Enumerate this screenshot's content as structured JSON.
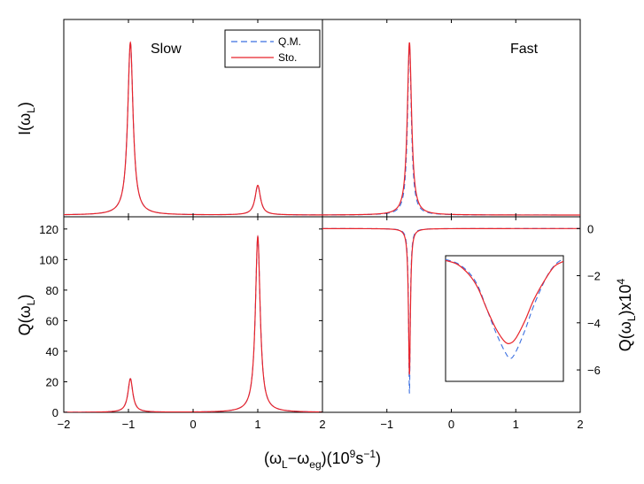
{
  "chart_data": [
    {
      "panel": "top-left",
      "type": "line",
      "title": "Slow",
      "ylabel": "I(ω_L)",
      "xlim": [
        -2,
        2
      ],
      "ylim": [
        0,
        100
      ],
      "ytick_labels": false,
      "legend": {
        "position": "top-right",
        "entries": [
          "Q.M.",
          "Sto."
        ]
      },
      "series": [
        {
          "name": "Q.M.",
          "color": "#3b6fe0",
          "style": "dashed",
          "peaks": [
            {
              "x0": -0.97,
              "gamma": 0.05,
              "amp": 100
            },
            {
              "x0": 1.0,
              "gamma": 0.05,
              "amp": 18
            }
          ],
          "baseline": 1.0
        },
        {
          "name": "Sto.",
          "color": "#e8232a",
          "style": "solid",
          "peaks": [
            {
              "x0": -0.97,
              "gamma": 0.05,
              "amp": 100
            },
            {
              "x0": 1.0,
              "gamma": 0.05,
              "amp": 18
            }
          ],
          "baseline": 1.0
        }
      ]
    },
    {
      "panel": "top-right",
      "type": "line",
      "title": "Fast",
      "xlim": [
        -2,
        2
      ],
      "ylim": [
        0,
        100
      ],
      "ytick_labels": false,
      "series": [
        {
          "name": "Q.M.",
          "color": "#3b6fe0",
          "style": "dashed",
          "peaks": [
            {
              "x0": -0.65,
              "gamma": 0.035,
              "amp": 99
            }
          ],
          "baseline": 1.0
        },
        {
          "name": "Sto.",
          "color": "#e8232a",
          "style": "solid",
          "peaks": [
            {
              "x0": -0.65,
              "gamma": 0.04,
              "amp": 100
            }
          ],
          "baseline": 1.0
        }
      ]
    },
    {
      "panel": "bottom-left",
      "type": "line",
      "ylabel": "Q(ω_L)",
      "xlabel": "(ω_L−ω_eg)(10^9s^−1)",
      "xlim": [
        -2,
        2
      ],
      "ylim": [
        0,
        128
      ],
      "xticks": [
        -2,
        -1,
        0,
        1,
        2
      ],
      "yticks": [
        0,
        20,
        40,
        60,
        80,
        100,
        120
      ],
      "series": [
        {
          "name": "Q.M.",
          "color": "#3b6fe0",
          "style": "dashed",
          "peaks": [
            {
              "x0": -0.97,
              "gamma": 0.045,
              "amp": 22
            },
            {
              "x0": 1.0,
              "gamma": 0.045,
              "amp": 115
            }
          ],
          "baseline": 0
        },
        {
          "name": "Sto.",
          "color": "#e8232a",
          "style": "solid",
          "peaks": [
            {
              "x0": -0.97,
              "gamma": 0.045,
              "amp": 22
            },
            {
              "x0": 1.0,
              "gamma": 0.045,
              "amp": 115
            }
          ],
          "baseline": 0
        }
      ]
    },
    {
      "panel": "bottom-right",
      "type": "line",
      "ylabel": "Q(ω_L)x10^4",
      "xlim": [
        -2,
        2
      ],
      "ylim": [
        -7.8,
        0.5
      ],
      "xticks": [
        -1,
        0,
        1,
        2
      ],
      "yticks": [
        0,
        -2,
        -4,
        -6
      ],
      "series": [
        {
          "name": "Q.M.",
          "color": "#3b6fe0",
          "style": "dashed",
          "peaks": [
            {
              "x0": -0.65,
              "gamma": 0.015,
              "amp": -7.0
            }
          ],
          "baseline": 0
        },
        {
          "name": "Sto.",
          "color": "#e8232a",
          "style": "solid",
          "peaks": [
            {
              "x0": -0.65,
              "gamma": 0.018,
              "amp": -6.2
            }
          ],
          "baseline": 0
        }
      ],
      "inset": {
        "xlim": [
          -1,
          1
        ],
        "ylim": [
          -6.6,
          0
        ],
        "series": [
          {
            "name": "Q.M.",
            "color": "#3b6fe0",
            "style": "dashed",
            "x": [
              -1.0,
              -0.8,
              -0.6,
              -0.45,
              -0.3,
              -0.15,
              0.0,
              0.1,
              0.2,
              0.35,
              0.5,
              0.7,
              0.85,
              1.0
            ],
            "y": [
              -0.2,
              -0.4,
              -0.9,
              -1.6,
              -2.8,
              -4.0,
              -5.0,
              -5.4,
              -5.0,
              -3.9,
              -2.6,
              -1.2,
              -0.5,
              -0.15
            ]
          },
          {
            "name": "Sto.",
            "color": "#e8232a",
            "style": "solid",
            "x": [
              -1.0,
              -0.8,
              -0.6,
              -0.45,
              -0.3,
              -0.15,
              0.0,
              0.1,
              0.2,
              0.35,
              0.5,
              0.7,
              0.85,
              1.0
            ],
            "y": [
              -0.25,
              -0.45,
              -1.0,
              -1.7,
              -2.8,
              -3.8,
              -4.5,
              -4.6,
              -4.3,
              -3.4,
              -2.3,
              -1.2,
              -0.55,
              -0.3
            ]
          }
        ]
      }
    }
  ],
  "labels": {
    "slow": "Slow",
    "fast": "Fast",
    "legend_qm": "Q.M.",
    "legend_sto": "Sto.",
    "ylabel_top_left": "I(ω",
    "ylabel_top_left_sub": "L",
    "ylabel_top_left_end": ")",
    "ylabel_bottom_left": "Q(ω",
    "ylabel_bottom_left_sub": "L",
    "ylabel_bottom_left_end": ")",
    "ylabel_right": "Q(ω",
    "ylabel_right_sub": "L",
    "ylabel_right_mid": ")x10",
    "ylabel_right_sup": "4",
    "xlabel_a": "(ω",
    "xlabel_sub1": "L",
    "xlabel_b": "−ω",
    "xlabel_sub2": "eg",
    "xlabel_c": ")(10",
    "xlabel_sup1": "9",
    "xlabel_d": "s",
    "xlabel_sup2": "−1",
    "xlabel_e": ")"
  }
}
